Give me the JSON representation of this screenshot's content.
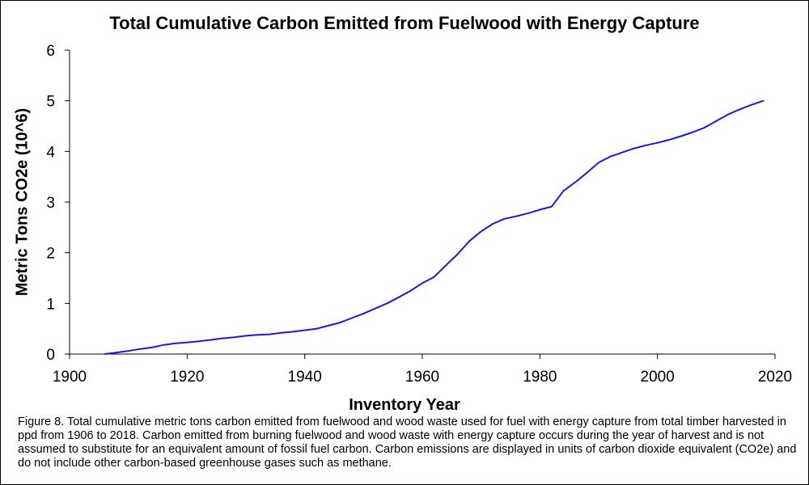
{
  "chart_data": {
    "type": "line",
    "title": "Total Cumulative Carbon Emitted from Fuelwood with Energy Capture",
    "xlabel": "Inventory Year",
    "ylabel": "Metric Tons CO2e (10^6)",
    "xlim": [
      1900,
      2020
    ],
    "ylim": [
      0,
      6
    ],
    "xticks": [
      "1900",
      "1920",
      "1940",
      "1960",
      "1980",
      "2000",
      "2020"
    ],
    "yticks": [
      "0",
      "1",
      "2",
      "3",
      "4",
      "5",
      "6"
    ],
    "grid": false,
    "legend": "none",
    "line_color": "#1a1adf",
    "series": [
      {
        "x": [
          1906,
          1908,
          1910,
          1912,
          1914,
          1916,
          1918,
          1920,
          1922,
          1924,
          1926,
          1928,
          1930,
          1932,
          1934,
          1936,
          1938,
          1940,
          1942,
          1944,
          1946,
          1948,
          1950,
          1952,
          1954,
          1956,
          1958,
          1960,
          1962,
          1964,
          1966,
          1968,
          1970,
          1972,
          1974,
          1976,
          1978,
          1980,
          1982,
          1984,
          1986,
          1988,
          1990,
          1992,
          1994,
          1996,
          1998,
          2000,
          2002,
          2004,
          2006,
          2008,
          2010,
          2012,
          2014,
          2016,
          2018
        ],
        "y": [
          0.0,
          0.03,
          0.06,
          0.1,
          0.13,
          0.18,
          0.21,
          0.23,
          0.25,
          0.28,
          0.31,
          0.33,
          0.36,
          0.38,
          0.39,
          0.42,
          0.44,
          0.47,
          0.5,
          0.56,
          0.62,
          0.71,
          0.8,
          0.9,
          1.0,
          1.12,
          1.25,
          1.4,
          1.52,
          1.75,
          1.97,
          2.23,
          2.42,
          2.57,
          2.67,
          2.72,
          2.78,
          2.85,
          2.91,
          3.22,
          3.39,
          3.58,
          3.78,
          3.9,
          3.98,
          4.06,
          4.12,
          4.17,
          4.23,
          4.3,
          4.38,
          4.47,
          4.6,
          4.73,
          4.83,
          4.92,
          5.0
        ]
      }
    ]
  },
  "caption": "Figure 8. Total cumulative metric tons carbon emitted from fuelwood and wood waste used for fuel with energy capture from total timber harvested in ppd from 1906 to 2018. Carbon emitted from burning fuelwood and wood waste with energy capture occurs during the year of harvest and is not assumed to substitute for an equivalent amount of fossil fuel carbon. Carbon emissions are displayed in units of carbon dioxide equivalent (CO2e) and do not include other carbon-based greenhouse gases such as methane."
}
